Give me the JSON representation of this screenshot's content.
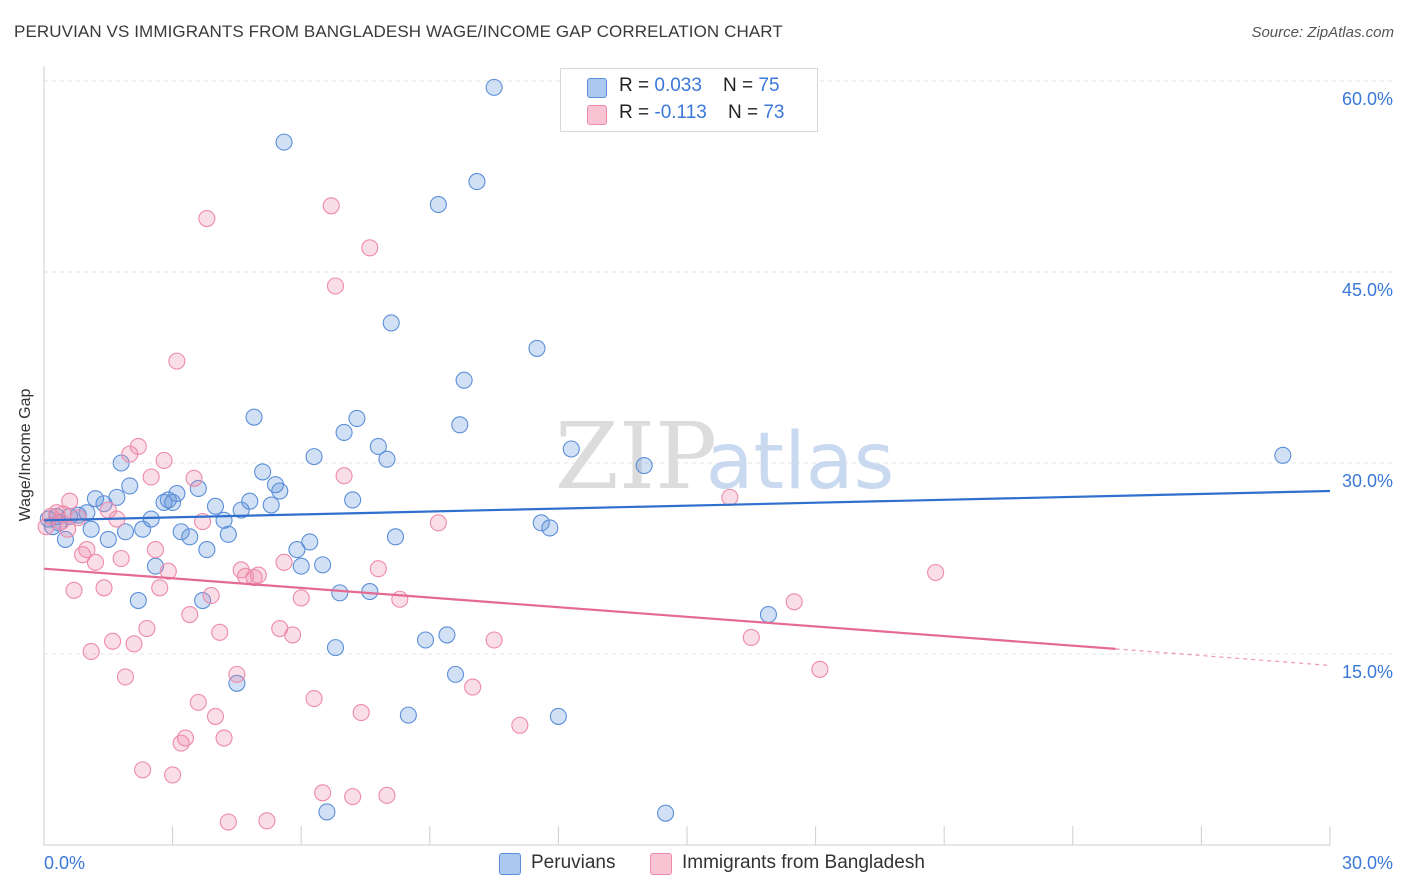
{
  "header": {
    "title": "PERUVIAN VS IMMIGRANTS FROM BANGLADESH WAGE/INCOME GAP CORRELATION CHART",
    "source": "Source: ZipAtlas.com"
  },
  "watermark": {
    "zip": "ZIP",
    "atlas": "atlas"
  },
  "legend": {
    "rows": [
      {
        "r_label": "R = ",
        "r_value": "0.033",
        "n_label": "N = ",
        "n_value": "75"
      },
      {
        "r_label": "R = ",
        "r_value": "-0.113",
        "n_label": "N = ",
        "n_value": "73"
      }
    ]
  },
  "bottom_legend": {
    "series1": "Peruvians",
    "series2": "Immigrants from Bangladesh"
  },
  "chart_data": {
    "type": "scatter",
    "title": "PERUVIAN VS IMMIGRANTS FROM BANGLADESH WAGE/INCOME GAP CORRELATION CHART",
    "ylabel": "Wage/Income Gap",
    "xlabel": "",
    "xlim": [
      0,
      30
    ],
    "ylim": [
      0,
      62
    ],
    "x_tick_labels": [
      "0.0%",
      "30.0%"
    ],
    "y_ticks": [
      15,
      30,
      45,
      60
    ],
    "y_tick_labels": [
      "15.0%",
      "30.0%",
      "45.0%",
      "60.0%"
    ],
    "grid": "horizontal dashed",
    "legend_position": "top-center",
    "colors": {
      "peruvians": "#5b8fd9",
      "bangladesh": "#ee8aaa",
      "peruvians_line": "#2f6fce",
      "bangladesh_line": "#e56a93",
      "tick_text": "#3a78d8"
    },
    "series": [
      {
        "name": "Peruvians",
        "R": 0.033,
        "N": 75,
        "trend": {
          "x": [
            0,
            30
          ],
          "y": [
            25.5,
            27.8
          ]
        },
        "points": [
          [
            0.1,
            25.6
          ],
          [
            0.2,
            25.0
          ],
          [
            0.3,
            25.8
          ],
          [
            0.35,
            25.3
          ],
          [
            0.5,
            24.0
          ],
          [
            0.6,
            25.8
          ],
          [
            0.8,
            25.9
          ],
          [
            1.0,
            26.1
          ],
          [
            1.1,
            24.8
          ],
          [
            1.2,
            27.2
          ],
          [
            1.4,
            26.8
          ],
          [
            1.5,
            24.0
          ],
          [
            1.7,
            27.3
          ],
          [
            1.8,
            30.0
          ],
          [
            1.9,
            24.6
          ],
          [
            2.0,
            28.2
          ],
          [
            2.2,
            19.2
          ],
          [
            2.3,
            24.8
          ],
          [
            2.5,
            25.6
          ],
          [
            2.6,
            21.9
          ],
          [
            2.8,
            26.9
          ],
          [
            2.9,
            27.1
          ],
          [
            3.0,
            26.9
          ],
          [
            3.1,
            27.6
          ],
          [
            3.2,
            24.6
          ],
          [
            3.4,
            24.2
          ],
          [
            3.6,
            28.0
          ],
          [
            3.7,
            19.2
          ],
          [
            3.8,
            23.2
          ],
          [
            4.0,
            26.6
          ],
          [
            4.2,
            25.5
          ],
          [
            4.3,
            24.4
          ],
          [
            4.5,
            12.7
          ],
          [
            4.6,
            26.3
          ],
          [
            4.8,
            27.0
          ],
          [
            4.9,
            33.6
          ],
          [
            5.1,
            29.3
          ],
          [
            5.3,
            26.7
          ],
          [
            5.4,
            28.3
          ],
          [
            5.5,
            27.8
          ],
          [
            5.6,
            55.2
          ],
          [
            5.9,
            23.2
          ],
          [
            6.0,
            21.9
          ],
          [
            6.2,
            23.8
          ],
          [
            6.3,
            30.5
          ],
          [
            6.5,
            22.0
          ],
          [
            6.6,
            2.6
          ],
          [
            6.8,
            15.5
          ],
          [
            6.9,
            19.8
          ],
          [
            7.0,
            32.4
          ],
          [
            7.2,
            27.1
          ],
          [
            7.3,
            33.5
          ],
          [
            7.6,
            19.9
          ],
          [
            7.8,
            31.3
          ],
          [
            8.0,
            30.3
          ],
          [
            8.1,
            41.0
          ],
          [
            8.2,
            24.2
          ],
          [
            8.5,
            10.2
          ],
          [
            8.9,
            16.1
          ],
          [
            9.2,
            50.3
          ],
          [
            9.4,
            16.5
          ],
          [
            9.6,
            13.4
          ],
          [
            9.7,
            33.0
          ],
          [
            9.8,
            36.5
          ],
          [
            10.1,
            52.1
          ],
          [
            10.5,
            59.5
          ],
          [
            11.5,
            39.0
          ],
          [
            11.6,
            25.3
          ],
          [
            11.8,
            24.9
          ],
          [
            12.0,
            10.1
          ],
          [
            12.3,
            31.1
          ],
          [
            14.0,
            29.8
          ],
          [
            14.5,
            2.5
          ],
          [
            16.9,
            18.1
          ],
          [
            28.9,
            30.6
          ]
        ]
      },
      {
        "name": "Immigrants from Bangladesh",
        "R": -0.113,
        "N": 73,
        "trend": {
          "x": [
            0,
            25
          ],
          "y": [
            21.7,
            15.4
          ]
        },
        "trend_dashed": {
          "x": [
            25,
            30
          ],
          "y": [
            15.4,
            14.1
          ]
        },
        "points": [
          [
            0.05,
            25.0
          ],
          [
            0.15,
            25.8
          ],
          [
            0.3,
            26.1
          ],
          [
            0.4,
            25.4
          ],
          [
            0.6,
            27.0
          ],
          [
            0.7,
            20.0
          ],
          [
            0.8,
            25.7
          ],
          [
            0.9,
            22.8
          ],
          [
            1.0,
            23.2
          ],
          [
            1.1,
            15.2
          ],
          [
            1.2,
            22.2
          ],
          [
            1.4,
            20.2
          ],
          [
            1.5,
            26.3
          ],
          [
            1.6,
            16.0
          ],
          [
            1.7,
            25.6
          ],
          [
            1.8,
            22.5
          ],
          [
            1.9,
            13.2
          ],
          [
            2.0,
            30.7
          ],
          [
            2.1,
            15.8
          ],
          [
            2.2,
            31.3
          ],
          [
            2.3,
            5.9
          ],
          [
            2.4,
            17.0
          ],
          [
            2.5,
            28.9
          ],
          [
            2.6,
            23.2
          ],
          [
            2.7,
            20.2
          ],
          [
            2.8,
            30.2
          ],
          [
            2.9,
            21.5
          ],
          [
            3.0,
            5.5
          ],
          [
            3.1,
            38.0
          ],
          [
            3.2,
            8.0
          ],
          [
            3.3,
            8.4
          ],
          [
            3.4,
            18.1
          ],
          [
            3.5,
            28.8
          ],
          [
            3.6,
            11.2
          ],
          [
            3.7,
            25.4
          ],
          [
            3.8,
            49.2
          ],
          [
            3.9,
            19.6
          ],
          [
            4.0,
            10.1
          ],
          [
            4.1,
            16.7
          ],
          [
            4.2,
            8.4
          ],
          [
            4.3,
            1.8
          ],
          [
            4.5,
            13.4
          ],
          [
            4.6,
            21.6
          ],
          [
            4.7,
            21.1
          ],
          [
            4.9,
            21.0
          ],
          [
            5.0,
            21.2
          ],
          [
            5.2,
            1.9
          ],
          [
            5.5,
            17.0
          ],
          [
            5.6,
            22.2
          ],
          [
            5.8,
            16.5
          ],
          [
            6.0,
            19.4
          ],
          [
            6.3,
            11.5
          ],
          [
            6.5,
            4.1
          ],
          [
            6.7,
            50.2
          ],
          [
            6.8,
            43.9
          ],
          [
            7.0,
            29.0
          ],
          [
            7.2,
            3.8
          ],
          [
            7.4,
            10.4
          ],
          [
            7.6,
            46.9
          ],
          [
            7.8,
            21.7
          ],
          [
            8.0,
            3.9
          ],
          [
            8.3,
            19.3
          ],
          [
            9.2,
            25.3
          ],
          [
            10.0,
            12.4
          ],
          [
            10.5,
            16.1
          ],
          [
            11.1,
            9.4
          ],
          [
            16.0,
            27.3
          ],
          [
            16.5,
            16.3
          ],
          [
            17.5,
            19.1
          ],
          [
            18.1,
            13.8
          ],
          [
            20.8,
            21.4
          ],
          [
            0.45,
            26.0
          ],
          [
            0.55,
            24.8
          ]
        ]
      }
    ]
  }
}
